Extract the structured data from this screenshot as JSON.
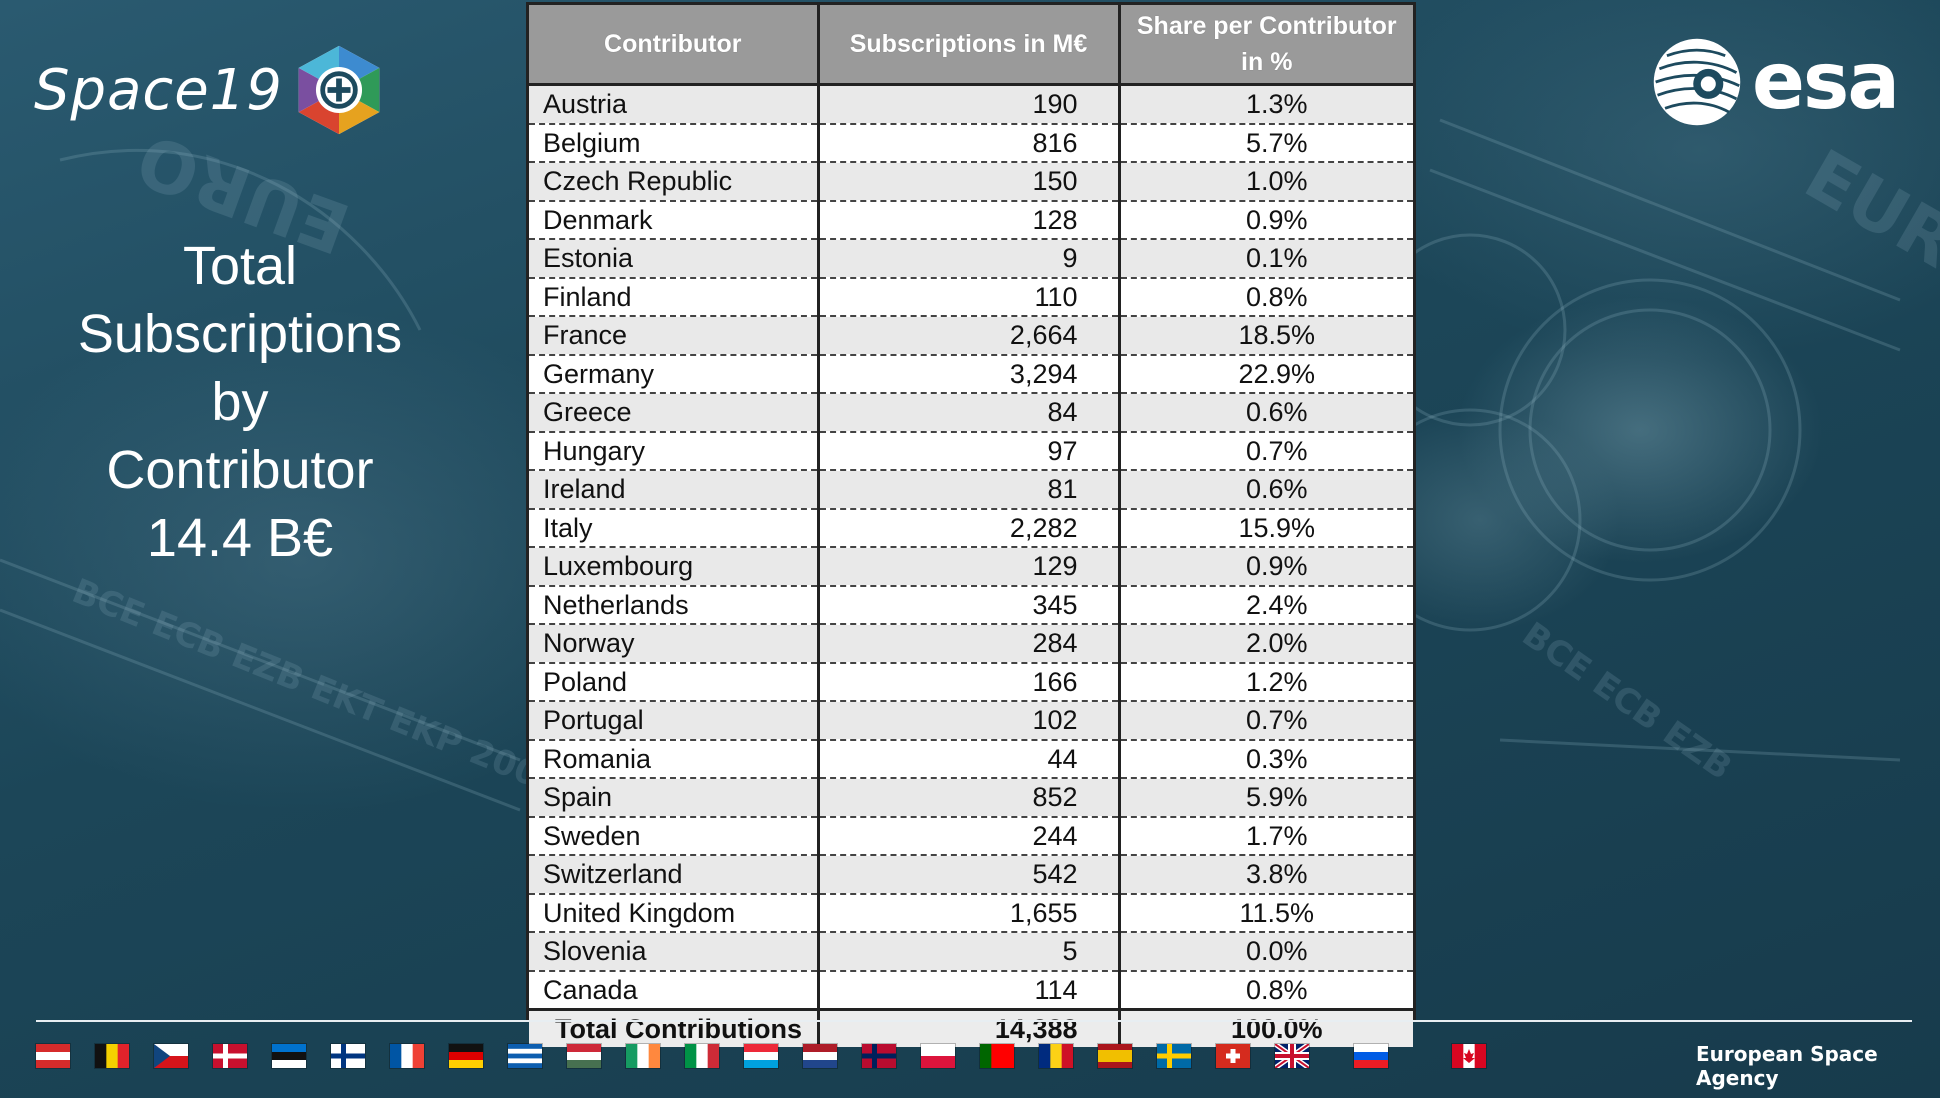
{
  "brand": {
    "event_logo_text": "Space19",
    "agency_logo_text": "esa",
    "footer_agency": "European Space Agency"
  },
  "title": {
    "lines": [
      "Total",
      "Subscriptions",
      "by",
      "Contributor",
      "14.4 B€"
    ]
  },
  "table": {
    "headers": [
      "Contributor",
      "Subscriptions in M€",
      "Share per Contributor in %"
    ],
    "rows": [
      [
        "Austria",
        "190",
        "1.3%"
      ],
      [
        "Belgium",
        "816",
        "5.7%"
      ],
      [
        "Czech Republic",
        "150",
        "1.0%"
      ],
      [
        "Denmark",
        "128",
        "0.9%"
      ],
      [
        "Estonia",
        "9",
        "0.1%"
      ],
      [
        "Finland",
        "110",
        "0.8%"
      ],
      [
        "France",
        "2,664",
        "18.5%"
      ],
      [
        "Germany",
        "3,294",
        "22.9%"
      ],
      [
        "Greece",
        "84",
        "0.6%"
      ],
      [
        "Hungary",
        "97",
        "0.7%"
      ],
      [
        "Ireland",
        "81",
        "0.6%"
      ],
      [
        "Italy",
        "2,282",
        "15.9%"
      ],
      [
        "Luxembourg",
        "129",
        "0.9%"
      ],
      [
        "Netherlands",
        "345",
        "2.4%"
      ],
      [
        "Norway",
        "284",
        "2.0%"
      ],
      [
        "Poland",
        "166",
        "1.2%"
      ],
      [
        "Portugal",
        "102",
        "0.7%"
      ],
      [
        "Romania",
        "44",
        "0.3%"
      ],
      [
        "Spain",
        "852",
        "5.9%"
      ],
      [
        "Sweden",
        "244",
        "1.7%"
      ],
      [
        "Switzerland",
        "542",
        "3.8%"
      ],
      [
        "United Kingdom",
        "1,655",
        "11.5%"
      ],
      [
        "Slovenia",
        "5",
        "0.0%"
      ],
      [
        "Canada",
        "114",
        "0.8%"
      ]
    ],
    "total": [
      "Total Contributions",
      "14,388",
      "100.0%"
    ]
  },
  "flags": [
    {
      "name": "austria-flag",
      "colors": [
        "#d62b2b",
        "#ffffff",
        "#d62b2b"
      ],
      "dir": "h"
    },
    {
      "name": "belgium-flag",
      "colors": [
        "#111111",
        "#f5d000",
        "#e1232b"
      ],
      "dir": "v"
    },
    {
      "name": "czech-flag",
      "colors": [
        "#ffffff",
        "#d7141a"
      ],
      "dir": "h",
      "triangle": "#11457e"
    },
    {
      "name": "denmark-flag",
      "colors": [
        "#c8102e"
      ],
      "cross": "#ffffff"
    },
    {
      "name": "estonia-flag",
      "colors": [
        "#0072ce",
        "#111111",
        "#ffffff"
      ],
      "dir": "h"
    },
    {
      "name": "finland-flag",
      "colors": [
        "#ffffff"
      ],
      "cross": "#003580"
    },
    {
      "name": "france-flag",
      "colors": [
        "#0055a4",
        "#ffffff",
        "#ef4135"
      ],
      "dir": "v"
    },
    {
      "name": "germany-flag",
      "colors": [
        "#111111",
        "#dd0000",
        "#ffce00"
      ],
      "dir": "h"
    },
    {
      "name": "greece-flag",
      "colors": [
        "#0d5eaf",
        "#ffffff",
        "#0d5eaf",
        "#ffffff",
        "#0d5eaf"
      ],
      "dir": "h"
    },
    {
      "name": "hungary-flag",
      "colors": [
        "#ce2939",
        "#ffffff",
        "#477050"
      ],
      "dir": "h"
    },
    {
      "name": "ireland-flag",
      "colors": [
        "#169b62",
        "#ffffff",
        "#ff883e"
      ],
      "dir": "v"
    },
    {
      "name": "italy-flag",
      "colors": [
        "#009246",
        "#ffffff",
        "#ce2b37"
      ],
      "dir": "v"
    },
    {
      "name": "luxembourg-flag",
      "colors": [
        "#ed2939",
        "#ffffff",
        "#00a1de"
      ],
      "dir": "h"
    },
    {
      "name": "netherlands-flag",
      "colors": [
        "#ae1c28",
        "#ffffff",
        "#21468b"
      ],
      "dir": "h"
    },
    {
      "name": "norway-flag",
      "colors": [
        "#ba0c2f"
      ],
      "cross": "#00205b"
    },
    {
      "name": "poland-flag",
      "colors": [
        "#ffffff",
        "#dc143c"
      ],
      "dir": "h"
    },
    {
      "name": "portugal-flag",
      "colors": [
        "#006600",
        "#ff0000",
        "#ff0000"
      ],
      "dir": "v"
    },
    {
      "name": "romania-flag",
      "colors": [
        "#002b7f",
        "#fcd116",
        "#ce1126"
      ],
      "dir": "v"
    },
    {
      "name": "spain-flag",
      "colors": [
        "#aa151b",
        "#f1bf00",
        "#f1bf00",
        "#aa151b"
      ],
      "dir": "h"
    },
    {
      "name": "sweden-flag",
      "colors": [
        "#006aa7"
      ],
      "cross": "#fecc00"
    },
    {
      "name": "switzerland-flag",
      "colors": [
        "#d52b1e"
      ],
      "plus": "#ffffff"
    },
    {
      "name": "uk-flag",
      "colors": [
        "#012169"
      ],
      "union": true
    },
    {
      "name": "slovenia-flag",
      "colors": [
        "#ffffff",
        "#005ce5",
        "#ed1c24"
      ],
      "dir": "h"
    },
    {
      "name": "canada-flag",
      "colors": [
        "#d80621",
        "#ffffff",
        "#d80621"
      ],
      "dir": "v",
      "leaf": "#d80621"
    }
  ],
  "colors": {
    "background": "#1d4a5e",
    "header_bg": "#9a9a9a",
    "row_alt": "#e9e9e9"
  }
}
